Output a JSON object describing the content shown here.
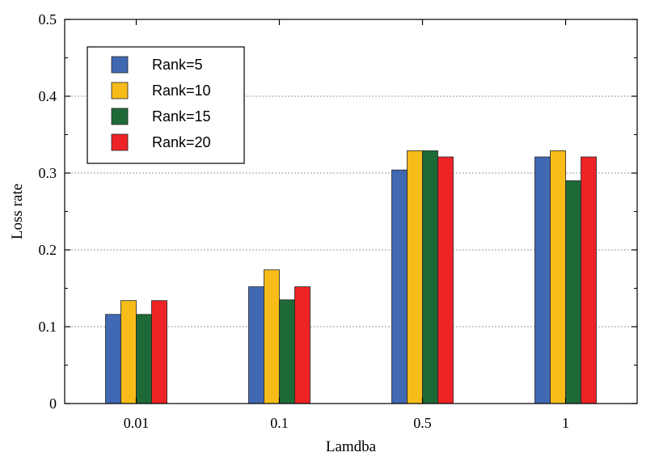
{
  "chart_data": {
    "type": "bar",
    "title": "",
    "xlabel": "Lamdba",
    "ylabel": "Loss rate",
    "categories": [
      "0.01",
      "0.1",
      "0.5",
      "1"
    ],
    "ylim": [
      0,
      0.5
    ],
    "yticks": [
      "0",
      "0.1",
      "0.2",
      "0.3",
      "0.4",
      "0.5"
    ],
    "grid": "horizontal dotted",
    "legend_position": "top-left",
    "series": [
      {
        "name": "Rank=5",
        "color": "#4169B3",
        "values": [
          0.116,
          0.152,
          0.304,
          0.321
        ]
      },
      {
        "name": "Rank=10",
        "color": "#F7BC1A",
        "values": [
          0.134,
          0.174,
          0.329,
          0.329
        ]
      },
      {
        "name": "Rank=15",
        "color": "#1E6A36",
        "values": [
          0.116,
          0.135,
          0.329,
          0.29
        ]
      },
      {
        "name": "Rank=20",
        "color": "#EE2326",
        "values": [
          0.134,
          0.152,
          0.321,
          0.321
        ]
      }
    ]
  }
}
